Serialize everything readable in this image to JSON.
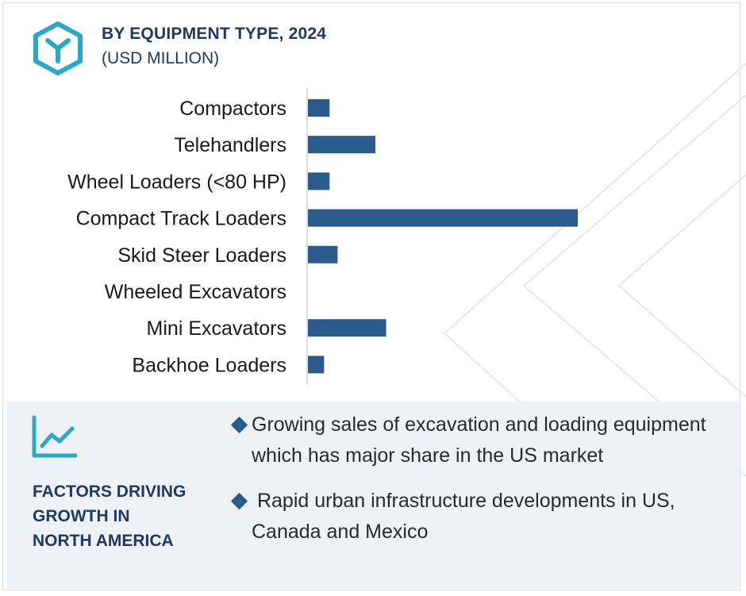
{
  "header": {
    "title": "BY EQUIPMENT TYPE, 2024",
    "subtitle": "(USD MILLION)"
  },
  "colors": {
    "bar": "#2b5a8c",
    "title": "#1f3864",
    "accent_icon": "#29a9c7",
    "panel_bg": "#eef1f6"
  },
  "chart_data": {
    "type": "bar",
    "orientation": "horizontal",
    "title": "BY EQUIPMENT TYPE, 2024",
    "subtitle": "(USD MILLION)",
    "categories": [
      "Compactors",
      "Telehandlers",
      "Wheel Loaders (<80 HP)",
      "Compact Track Loaders",
      "Skid Steer Loaders",
      "Wheeled Excavators",
      "Mini Excavators",
      "Backhoe Loaders"
    ],
    "values": [
      8,
      25,
      8,
      100,
      11,
      0,
      29,
      6
    ],
    "xlim": [
      0,
      100
    ],
    "grid": false,
    "legend": "none"
  },
  "factors": {
    "icon": "line-chart-trend-icon",
    "title_lines": [
      "FACTORS DRIVING",
      "GROWTH IN",
      "NORTH AMERICA"
    ],
    "bullets": [
      "Growing sales of excavation and loading equipment which has major share in the US market",
      " Rapid urban infrastructure developments in US, Canada and Mexico"
    ]
  }
}
